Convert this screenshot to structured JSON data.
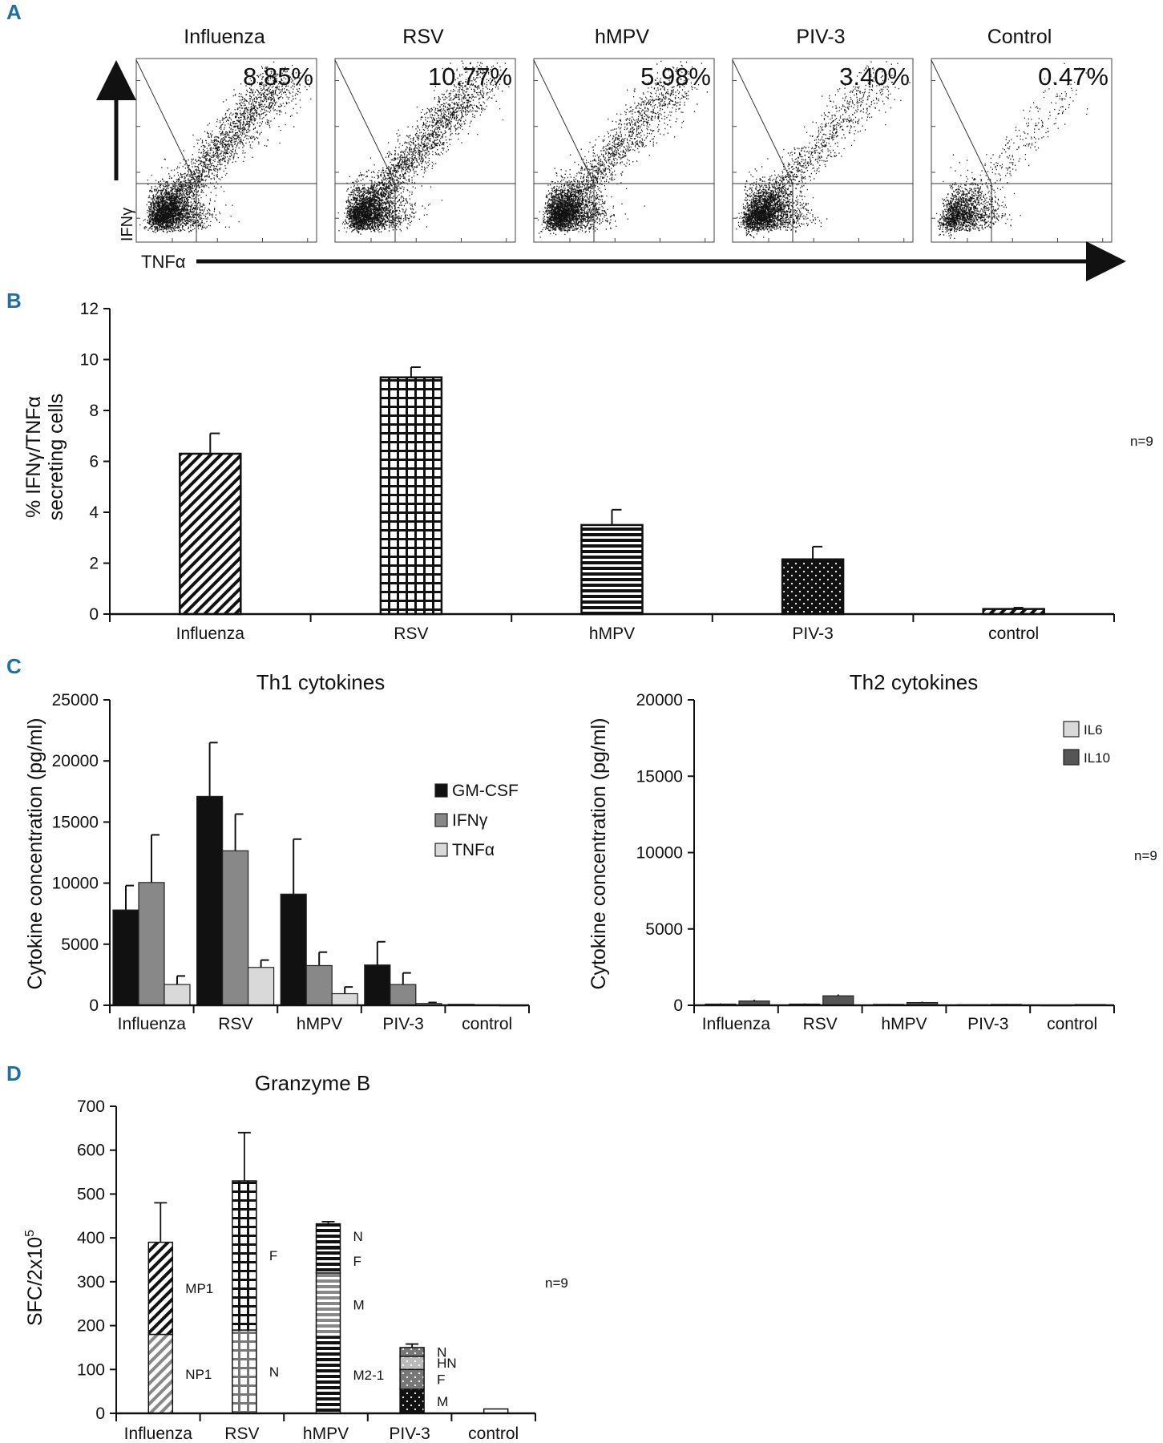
{
  "panel_labels": [
    "A",
    "B",
    "C",
    "D"
  ],
  "colors": {
    "panel_label": "#1f6fa0",
    "black": "#111111",
    "dark_gray": "#6d6d6d",
    "mid_gray": "#888888",
    "light_gray": "#d9d9d9"
  },
  "panelA": {
    "type": "flow-cytometry",
    "x_axis_label": "TNFα",
    "y_axis_label": "IFNγ",
    "plots": [
      {
        "title": "Influenza",
        "percent": "8.85%",
        "density": 1.0
      },
      {
        "title": "RSV",
        "percent": "10.77%",
        "density": 1.0
      },
      {
        "title": "hMPV",
        "percent": "5.98%",
        "density": 0.85
      },
      {
        "title": "PIV-3",
        "percent": "3.40%",
        "density": 0.7
      },
      {
        "title": "Control",
        "percent": "0.47%",
        "density": 0.25
      }
    ]
  },
  "chart_data": [
    {
      "id": "B",
      "type": "bar",
      "title": "",
      "ylabel": "% IFNγ/TNFα secreting cells",
      "ylabel_lines": [
        "% IFNγ/TNFα",
        "secreting cells"
      ],
      "ylim": [
        0,
        12
      ],
      "yticks": [
        0,
        2,
        4,
        6,
        8,
        10,
        12
      ],
      "categories": [
        "Influenza",
        "RSV",
        "hMPV",
        "PIV-3",
        "control"
      ],
      "values": [
        6.3,
        9.3,
        3.5,
        2.15,
        0.2
      ],
      "errors": [
        0.8,
        0.4,
        0.6,
        0.5,
        0.05
      ],
      "patterns": [
        "diag",
        "grid",
        "hlines",
        "dots",
        "diag"
      ],
      "note": "n=9"
    },
    {
      "id": "C-th1",
      "type": "bar",
      "title": "Th1 cytokines",
      "ylabel": "Cytokine concentration (pg/ml)",
      "ylim": [
        0,
        25000
      ],
      "yticks": [
        0,
        5000,
        10000,
        15000,
        20000,
        25000
      ],
      "categories": [
        "Influenza",
        "RSV",
        "hMPV",
        "PIV-3",
        "control"
      ],
      "series": [
        {
          "name": "GM-CSF",
          "color": "#111111",
          "values": [
            7800,
            17100,
            9100,
            3300,
            80
          ],
          "errors": [
            2000,
            4400,
            4500,
            1900,
            0
          ]
        },
        {
          "name": "IFNγ",
          "color": "#888888",
          "values": [
            10050,
            12650,
            3250,
            1700,
            40
          ],
          "errors": [
            3900,
            3000,
            1100,
            950,
            0
          ]
        },
        {
          "name": "TNFα",
          "color": "#d9d9d9",
          "values": [
            1700,
            3100,
            950,
            150,
            20
          ],
          "errors": [
            700,
            600,
            550,
            80,
            0
          ]
        }
      ]
    },
    {
      "id": "C-th2",
      "type": "bar",
      "title": "Th2 cytokines",
      "ylabel": "Cytokine concentration (pg/ml)",
      "ylim": [
        0,
        20000
      ],
      "yticks": [
        0,
        5000,
        10000,
        15000,
        20000
      ],
      "categories": [
        "Influenza",
        "RSV",
        "hMPV",
        "PIV-3",
        "control"
      ],
      "series": [
        {
          "name": "IL6",
          "color": "#d9d9d9",
          "values": [
            80,
            80,
            60,
            40,
            20
          ],
          "errors": [
            40,
            40,
            30,
            20,
            10
          ]
        },
        {
          "name": "IL10",
          "color": "#555555",
          "values": [
            280,
            620,
            180,
            60,
            50
          ],
          "errors": [
            80,
            90,
            60,
            30,
            20
          ]
        }
      ],
      "note": "n=9"
    },
    {
      "id": "D",
      "type": "stacked-bar",
      "title": "Granzyme B",
      "ylabel": "SFC/2x10",
      "ylabel_sup": "5",
      "ylim": [
        0,
        700
      ],
      "yticks": [
        0,
        100,
        200,
        300,
        400,
        500,
        600,
        700
      ],
      "categories": [
        "Influenza",
        "RSV",
        "hMPV",
        "PIV-3",
        "control"
      ],
      "stacks": [
        {
          "segments": [
            {
              "label": "NP1",
              "value": 180,
              "fill": "diag-gray"
            },
            {
              "label": "MP1",
              "value": 210,
              "fill": "diag"
            }
          ],
          "error": 90
        },
        {
          "segments": [
            {
              "label": "N",
              "value": 190,
              "fill": "grid-gray"
            },
            {
              "label": "F",
              "value": 340,
              "fill": "grid"
            }
          ],
          "error": 110
        },
        {
          "segments": [
            {
              "label": "M2-1",
              "value": 175,
              "fill": "hlines"
            },
            {
              "label": "M",
              "value": 145,
              "fill": "hlines-gray"
            },
            {
              "label": "F",
              "value": 55,
              "fill": "hlines"
            },
            {
              "label": "N",
              "value": 57,
              "fill": "hlines"
            }
          ],
          "error": 5
        },
        {
          "segments": [
            {
              "label": "M",
              "value": 55,
              "fill": "dots"
            },
            {
              "label": "F",
              "value": 45,
              "fill": "dots-gray"
            },
            {
              "label": "HN",
              "value": 30,
              "fill": "dots-light"
            },
            {
              "label": "N",
              "value": 20,
              "fill": "dots-gray"
            }
          ],
          "error": 8
        },
        {
          "segments": [
            {
              "label": "",
              "value": 10,
              "fill": "white"
            }
          ],
          "error": 0
        }
      ],
      "note": "n=9"
    }
  ]
}
